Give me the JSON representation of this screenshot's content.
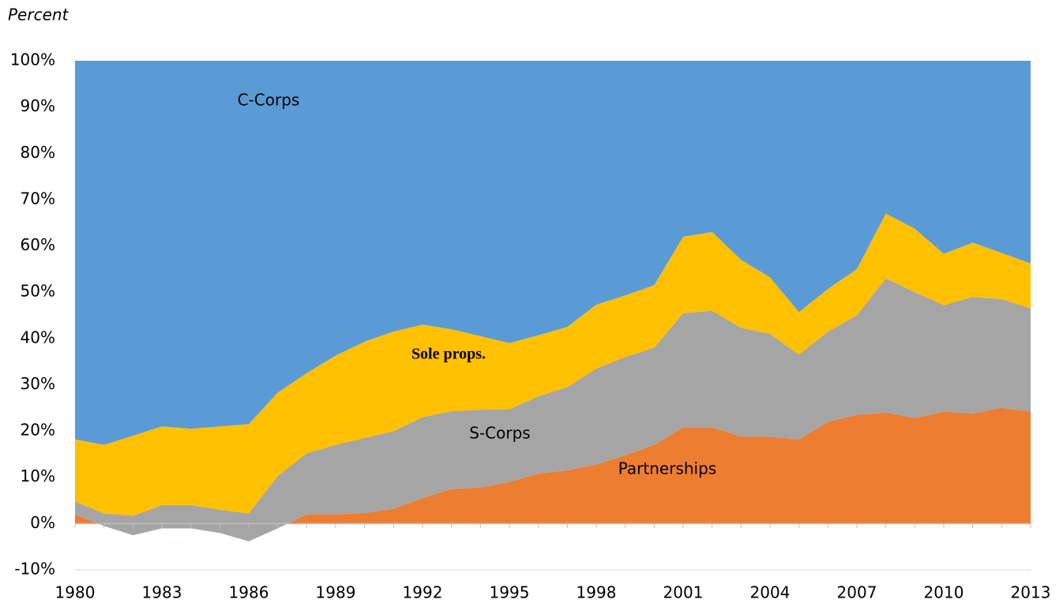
{
  "chart_data": {
    "type": "stacked_area",
    "y_label": "Percent",
    "x": [
      1980,
      1981,
      1982,
      1983,
      1984,
      1985,
      1986,
      1987,
      1988,
      1989,
      1990,
      1991,
      1992,
      1993,
      1994,
      1995,
      1996,
      1997,
      1998,
      1999,
      2000,
      2001,
      2002,
      2003,
      2004,
      2005,
      2006,
      2007,
      2008,
      2009,
      2010,
      2011,
      2012,
      2013
    ],
    "series": [
      {
        "name": "Partnerships",
        "color": "#ed7d31",
        "values": [
          2,
          -0.5,
          -2.5,
          -1,
          -1,
          -2,
          -3.8,
          -1,
          2,
          2,
          2.3,
          3.2,
          5.5,
          7.5,
          7.8,
          9,
          10.8,
          11.5,
          12.8,
          14.8,
          17,
          20.8,
          20.8,
          18.8,
          18.8,
          18.2,
          22,
          23.5,
          24,
          22.8,
          24.2,
          23.8,
          25,
          24.2
        ]
      },
      {
        "name": "S-Corps",
        "color": "#a5a5a5",
        "values": [
          2.8,
          2.7,
          4.2,
          5,
          5,
          5,
          6,
          11.3,
          13.2,
          15,
          16.2,
          16.8,
          17.5,
          16.8,
          16.8,
          15.7,
          16.7,
          18,
          20.7,
          21.2,
          21,
          24.7,
          25.2,
          23.5,
          22.2,
          18.3,
          19.5,
          21.5,
          29,
          27.2,
          23,
          25.2,
          23.5,
          22.3
        ]
      },
      {
        "name": "Sole props.",
        "color": "#ffc000",
        "values": [
          13.4,
          14.8,
          17.3,
          17,
          16.5,
          18,
          19.3,
          18,
          17.3,
          19.3,
          20.8,
          21.5,
          20,
          17.7,
          15.9,
          14.3,
          13.2,
          13,
          13.8,
          13.3,
          13.5,
          16.5,
          17,
          14.7,
          12.2,
          9.2,
          9.2,
          10,
          14,
          13.7,
          11.1,
          11.7,
          10,
          9.7
        ]
      },
      {
        "name": "C-Corps",
        "color": "#5b9bd5",
        "values": [
          81.8,
          83,
          81,
          79,
          79.5,
          79,
          78.5,
          71.7,
          67.5,
          63.7,
          60.7,
          58.5,
          57,
          58,
          59.5,
          61,
          59.3,
          57.5,
          52.7,
          50.7,
          48.5,
          38,
          37,
          43,
          46.8,
          54.3,
          49.3,
          45,
          33,
          36.3,
          41.7,
          39.3,
          41.5,
          43.8
        ]
      }
    ],
    "xlim": [
      1980,
      2013
    ],
    "xticks": [
      1980,
      1983,
      1986,
      1989,
      1992,
      1995,
      1998,
      2001,
      2004,
      2007,
      2010,
      2013
    ],
    "ylim": [
      -10,
      100
    ],
    "yticks": [
      {
        "value": -10,
        "label": "-10%"
      },
      {
        "value": 0,
        "label": "0%"
      },
      {
        "value": 10,
        "label": "10%"
      },
      {
        "value": 20,
        "label": "20%"
      },
      {
        "value": 30,
        "label": "30%"
      },
      {
        "value": 40,
        "label": "40%"
      },
      {
        "value": 50,
        "label": "50%"
      },
      {
        "value": 60,
        "label": "60%"
      },
      {
        "value": 70,
        "label": "70%"
      },
      {
        "value": 80,
        "label": "80%"
      },
      {
        "value": 90,
        "label": "90%"
      },
      {
        "value": 100,
        "label": "100%"
      }
    ]
  }
}
